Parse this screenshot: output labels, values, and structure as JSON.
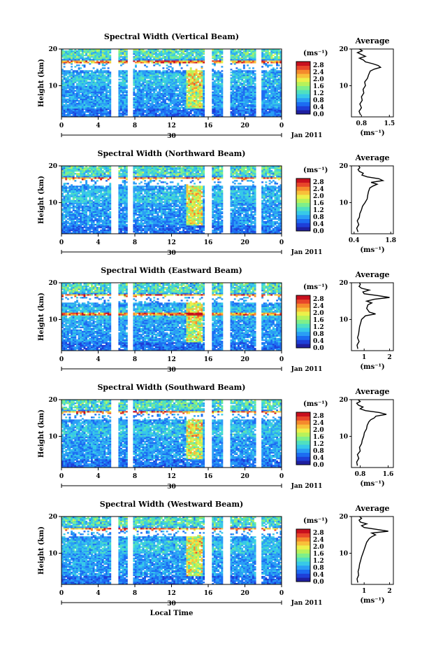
{
  "chart_data": {
    "type": "heatmap",
    "date_label": "Jan 2011",
    "day_label": "30",
    "xlabel_bottom": "Local Time",
    "x_ticks": [
      "0",
      "4",
      "8",
      "12",
      "16",
      "20",
      "0"
    ],
    "xlim": [
      0,
      24
    ],
    "ylabel": "Height (km)",
    "y_ticks": [
      "20",
      "10"
    ],
    "ylim": [
      1.5,
      20
    ],
    "colorbar_unit": "(ms⁻¹)",
    "colorbar_ticks": [
      "2.8",
      "2.4",
      "2.0",
      "1.6",
      "1.2",
      "0.8",
      "0.4",
      "0.0"
    ],
    "colorbar_range": [
      0,
      3.0
    ],
    "colorscale": [
      "#1f1fa0",
      "#1e3fd8",
      "#1c6cf2",
      "#2a9ef5",
      "#37c9e8",
      "#4fe0c0",
      "#7eef8a",
      "#b7f25a",
      "#ecf04a",
      "#f8c03a",
      "#f58a2c",
      "#e8462a",
      "#c8101e"
    ],
    "data_gaps_hours": [
      [
        5.5,
        6.2
      ],
      [
        7.2,
        7.8
      ],
      [
        15.7,
        16.4
      ],
      [
        17.7,
        18.3
      ],
      [
        21.2,
        21.8
      ]
    ],
    "average_title": "Average",
    "average_xlabel": "(ms⁻¹)",
    "panels": [
      {
        "title": "Spectral Width (Vertical Beam)",
        "avg_xticks": [
          "0.8",
          "1.5"
        ],
        "avg_xlim": [
          0.55,
          1.6
        ],
        "avg_profile": {
          "height_km": [
            2,
            3,
            4,
            5,
            6,
            7,
            8,
            9,
            10,
            11,
            12,
            13,
            14,
            14.5,
            15,
            15.5,
            16,
            16.5,
            17,
            17.5,
            18,
            18.5,
            19,
            19.5,
            20
          ],
          "width": [
            0.78,
            0.74,
            0.8,
            0.76,
            0.82,
            0.8,
            0.86,
            0.84,
            0.9,
            0.88,
            0.95,
            0.98,
            1.02,
            1.12,
            1.28,
            1.22,
            1.08,
            0.9,
            0.85,
            0.75,
            0.9,
            0.8,
            0.7,
            0.82,
            0.75
          ]
        }
      },
      {
        "title": "Spectral Width (Northward Beam)",
        "avg_xticks": [
          "0.4",
          "1.8"
        ],
        "avg_xlim": [
          0.3,
          1.9
        ],
        "avg_profile": {
          "height_km": [
            2,
            3,
            4,
            5,
            6,
            7,
            8,
            9,
            10,
            11,
            12,
            13,
            14,
            14.5,
            15,
            15.5,
            16,
            16.5,
            17,
            17.5,
            18,
            18.5,
            19,
            19.5,
            20
          ],
          "width": [
            0.55,
            0.5,
            0.58,
            0.52,
            0.6,
            0.62,
            0.68,
            0.72,
            0.82,
            0.9,
            0.92,
            0.95,
            1.0,
            1.12,
            1.28,
            1.05,
            1.5,
            1.35,
            0.9,
            0.7,
            0.75,
            0.6,
            0.55,
            0.62,
            0.58
          ]
        }
      },
      {
        "title": "Spectral Width (Eastward Beam)",
        "avg_xticks": [
          "1",
          "2"
        ],
        "avg_xlim": [
          0.5,
          2.15
        ],
        "avg_profile": {
          "height_km": [
            2,
            3,
            4,
            5,
            6,
            7,
            8,
            9,
            10,
            11,
            11.5,
            12,
            13,
            14,
            14.5,
            15,
            15.5,
            16,
            16.5,
            17,
            17.5,
            18,
            18.5,
            19,
            19.5,
            20
          ],
          "width": [
            0.75,
            0.72,
            0.8,
            0.74,
            0.78,
            0.8,
            0.82,
            0.86,
            0.9,
            1.05,
            1.45,
            1.2,
            1.1,
            1.15,
            1.3,
            1.1,
            1.4,
            2.0,
            1.55,
            1.0,
            0.95,
            1.2,
            0.9,
            0.8,
            0.85,
            0.82
          ]
        }
      },
      {
        "title": "Spectral Width (Southward Beam)",
        "avg_xticks": [
          "0.8",
          "1.6"
        ],
        "avg_xlim": [
          0.55,
          1.75
        ],
        "avg_profile": {
          "height_km": [
            2,
            3,
            4,
            5,
            6,
            7,
            8,
            9,
            10,
            11,
            12,
            13,
            14,
            14.5,
            15,
            15.5,
            16,
            16.5,
            17,
            17.5,
            18,
            18.5,
            19,
            19.5,
            20
          ],
          "width": [
            0.72,
            0.7,
            0.76,
            0.72,
            0.8,
            0.78,
            0.84,
            0.86,
            0.9,
            0.92,
            0.98,
            1.0,
            1.05,
            1.1,
            1.2,
            1.25,
            1.55,
            1.35,
            0.95,
            0.8,
            0.88,
            0.75,
            0.7,
            0.8,
            0.74
          ]
        }
      },
      {
        "title": "Spectral Width (Westward Beam)",
        "avg_xticks": [
          "1",
          "2"
        ],
        "avg_xlim": [
          0.5,
          2.15
        ],
        "avg_profile": {
          "height_km": [
            2,
            3,
            4,
            5,
            6,
            7,
            8,
            9,
            10,
            11,
            12,
            13,
            14,
            14.5,
            15,
            15.5,
            16,
            16.5,
            17,
            17.5,
            18,
            18.5,
            19,
            19.5,
            20
          ],
          "width": [
            0.75,
            0.72,
            0.78,
            0.76,
            0.8,
            0.82,
            0.86,
            0.9,
            0.95,
            1.0,
            1.05,
            1.1,
            1.2,
            1.3,
            1.45,
            1.3,
            1.95,
            1.5,
            1.0,
            0.9,
            1.1,
            0.85,
            0.8,
            0.9,
            0.82
          ]
        }
      }
    ]
  }
}
